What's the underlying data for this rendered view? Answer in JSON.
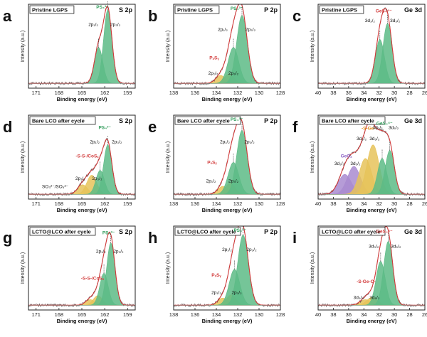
{
  "figure": {
    "description_label": "XPS spectra grid"
  },
  "chart_data": [
    {
      "id": "a",
      "type": "xps",
      "title": "Pristine LGPS",
      "core_level": "S 2p",
      "xlabel": "Binding energy (eV)",
      "ylabel": "Intensity (a.u.)",
      "xlim": [
        172,
        158
      ],
      "xticks": [
        171,
        168,
        165,
        162,
        159
      ],
      "peaks": [
        {
          "center": 162.8,
          "height": 0.45,
          "width": 0.55,
          "color": "green"
        },
        {
          "center": 161.6,
          "height": 0.92,
          "width": 0.55,
          "color": "green"
        }
      ],
      "labels": [
        {
          "text": "PS₄³⁻",
          "x": 162.3,
          "y": 1.0,
          "color": "green"
        },
        {
          "text": "2p₁/₂",
          "x": 163.5,
          "y": 0.78
        },
        {
          "text": "2p₃/₂",
          "x": 160.6,
          "y": 0.78
        }
      ]
    },
    {
      "id": "b",
      "type": "xps",
      "title": "Pristine LGPS",
      "core_level": "P 2p",
      "xlabel": "Binding energy (eV)",
      "ylabel": "Intensity (a.u.)",
      "xlim": [
        138,
        128
      ],
      "xticks": [
        138,
        136,
        134,
        132,
        130,
        128
      ],
      "peaks": [
        {
          "center": 133.6,
          "height": 0.1,
          "width": 0.45,
          "color": "gold"
        },
        {
          "center": 132.8,
          "height": 0.12,
          "width": 0.45,
          "color": "gold"
        },
        {
          "center": 132.4,
          "height": 0.45,
          "width": 0.5,
          "color": "green"
        },
        {
          "center": 131.6,
          "height": 0.85,
          "width": 0.5,
          "color": "green"
        }
      ],
      "labels": [
        {
          "text": "PS₄³⁻",
          "x": 132.1,
          "y": 0.98,
          "color": "green"
        },
        {
          "text": "2p₁/₂",
          "x": 133.4,
          "y": 0.72
        },
        {
          "text": "2p₃/₂",
          "x": 130.8,
          "y": 0.72
        },
        {
          "text": "PₓSᵧ",
          "x": 134.2,
          "y": 0.36,
          "color": "red"
        },
        {
          "text": "2p₁/₂",
          "x": 134.3,
          "y": 0.17
        },
        {
          "text": "2p₃/₂",
          "x": 132.4,
          "y": 0.17
        }
      ]
    },
    {
      "id": "c",
      "type": "xps",
      "title": "Pristine LGPS",
      "core_level": "Ge 3d",
      "xlabel": "Binding energy (eV)",
      "ylabel": "Intensity (a.u.)",
      "xlim": [
        40,
        26
      ],
      "xticks": [
        40,
        38,
        36,
        34,
        32,
        30,
        28,
        26
      ],
      "peaks": [
        {
          "center": 31.9,
          "height": 0.55,
          "width": 0.6,
          "color": "green"
        },
        {
          "center": 30.9,
          "height": 0.75,
          "width": 0.6,
          "color": "green"
        }
      ],
      "labels": [
        {
          "text": "GeS₄⁴⁻",
          "x": 31.4,
          "y": 0.95,
          "color": "red"
        },
        {
          "text": "3d₃/₂",
          "x": 33.2,
          "y": 0.83
        },
        {
          "text": "3d₅/₂",
          "x": 29.9,
          "y": 0.83
        }
      ]
    },
    {
      "id": "d",
      "type": "xps",
      "title": "Bare LCO after cycle",
      "core_level": "S 2p",
      "xlabel": "Binding energy (eV)",
      "ylabel": "Intensity (a.u.)",
      "xlim": [
        172,
        158
      ],
      "xticks": [
        171,
        168,
        165,
        162,
        159
      ],
      "peaks": [
        {
          "center": 164.9,
          "height": 0.12,
          "width": 0.65,
          "color": "gold"
        },
        {
          "center": 163.7,
          "height": 0.24,
          "width": 0.65,
          "color": "gold"
        },
        {
          "center": 162.6,
          "height": 0.3,
          "width": 0.55,
          "color": "green"
        },
        {
          "center": 161.6,
          "height": 0.62,
          "width": 0.55,
          "color": "green"
        }
      ],
      "labels": [
        {
          "text": "PS₄³⁻",
          "x": 162.0,
          "y": 0.88,
          "color": "green"
        },
        {
          "text": "2p₁/₂",
          "x": 163.3,
          "y": 0.7
        },
        {
          "text": "2p₃/₂",
          "x": 160.4,
          "y": 0.7
        },
        {
          "text": "-S-S-/CoSₓ",
          "x": 164.3,
          "y": 0.52,
          "color": "red"
        },
        {
          "text": "2p₁/₂",
          "x": 165.2,
          "y": 0.24
        },
        {
          "text": "2p₃/₂",
          "x": 163.0,
          "y": 0.24
        },
        {
          "text": "SO₃²⁻/SO₄²⁻",
          "x": 168.5,
          "y": 0.14
        }
      ]
    },
    {
      "id": "e",
      "type": "xps",
      "title": "Bare LCO after cycle",
      "core_level": "P 2p",
      "xlabel": "Binding energy (eV)",
      "ylabel": "Intensity (a.u.)",
      "xlim": [
        138,
        128
      ],
      "xticks": [
        138,
        136,
        134,
        132,
        130,
        128
      ],
      "peaks": [
        {
          "center": 133.4,
          "height": 0.1,
          "width": 0.45,
          "color": "gold"
        },
        {
          "center": 132.7,
          "height": 0.14,
          "width": 0.45,
          "color": "gold"
        },
        {
          "center": 132.4,
          "height": 0.4,
          "width": 0.5,
          "color": "green"
        },
        {
          "center": 131.6,
          "height": 0.8,
          "width": 0.5,
          "color": "green"
        }
      ],
      "labels": [
        {
          "text": "PS₄³⁻",
          "x": 132.1,
          "y": 0.98,
          "color": "green"
        },
        {
          "text": "2p₁/₂",
          "x": 133.2,
          "y": 0.7
        },
        {
          "text": "2p₃/₂",
          "x": 130.9,
          "y": 0.7
        },
        {
          "text": "PₓSᵧ",
          "x": 134.4,
          "y": 0.44,
          "color": "red"
        },
        {
          "text": "2p₁/₂",
          "x": 134.5,
          "y": 0.21
        },
        {
          "text": "2p₃/₂",
          "x": 132.4,
          "y": 0.21
        }
      ]
    },
    {
      "id": "f",
      "type": "xps",
      "title": "Bare LCO after cycle",
      "core_level": "Ge 3d",
      "xlabel": "Binding energy (eV)",
      "ylabel": "Intensity (a.u.)",
      "xlim": [
        40,
        26
      ],
      "xticks": [
        40,
        38,
        36,
        34,
        32,
        30,
        28,
        26
      ],
      "peaks": [
        {
          "center": 36.5,
          "height": 0.25,
          "width": 0.85,
          "color": "purple"
        },
        {
          "center": 35.3,
          "height": 0.35,
          "width": 0.85,
          "color": "purple"
        },
        {
          "center": 33.8,
          "height": 0.45,
          "width": 0.8,
          "color": "gold"
        },
        {
          "center": 32.8,
          "height": 0.62,
          "width": 0.8,
          "color": "gold"
        },
        {
          "center": 31.6,
          "height": 0.45,
          "width": 0.6,
          "color": "green"
        },
        {
          "center": 30.6,
          "height": 0.55,
          "width": 0.6,
          "color": "green"
        }
      ],
      "labels": [
        {
          "text": "GeS₄⁴⁻",
          "x": 31.3,
          "y": 0.93,
          "color": "green"
        },
        {
          "text": "-S-Ge-",
          "x": 33.4,
          "y": 0.87,
          "color": "orange"
        },
        {
          "text": "GeOₓ",
          "x": 36.3,
          "y": 0.52,
          "color": "purple"
        },
        {
          "text": "3d₃/₂",
          "x": 37.2,
          "y": 0.43
        },
        {
          "text": "3d₅/₂",
          "x": 35.1,
          "y": 0.43
        },
        {
          "text": "3d₃/₂",
          "x": 34.3,
          "y": 0.74
        },
        {
          "text": "3d₅/₂",
          "x": 32.6,
          "y": 0.74
        },
        {
          "text": "3d₃/₂",
          "x": 32.2,
          "y": 0.88
        },
        {
          "text": "3d₅/₂",
          "x": 30.1,
          "y": 0.88
        }
      ]
    },
    {
      "id": "g",
      "type": "xps",
      "title": "LCTO@LCO after cycle",
      "core_level": "S 2p",
      "xlabel": "Binding energy (eV)",
      "ylabel": "Intensity (a.u.)",
      "xlim": [
        172,
        158
      ],
      "xticks": [
        171,
        168,
        165,
        162,
        159
      ],
      "peaks": [
        {
          "center": 163.9,
          "height": 0.07,
          "width": 0.6,
          "color": "gold"
        },
        {
          "center": 162.9,
          "height": 0.12,
          "width": 0.6,
          "color": "gold"
        },
        {
          "center": 162.1,
          "height": 0.4,
          "width": 0.55,
          "color": "green"
        },
        {
          "center": 161.2,
          "height": 0.78,
          "width": 0.55,
          "color": "green"
        }
      ],
      "labels": [
        {
          "text": "PS₄³⁻",
          "x": 161.5,
          "y": 0.95,
          "color": "green"
        },
        {
          "text": "2p₁/₂",
          "x": 162.5,
          "y": 0.72
        },
        {
          "text": "2p₃/₂",
          "x": 160.2,
          "y": 0.72
        },
        {
          "text": "-S-S-/CoSₓ",
          "x": 163.6,
          "y": 0.38,
          "color": "red"
        }
      ]
    },
    {
      "id": "h",
      "type": "xps",
      "title": "LCTO@LCO after cycle",
      "core_level": "P 2p",
      "xlabel": "Binding energy (eV)",
      "ylabel": "Intensity (a.u.)",
      "xlim": [
        138,
        128
      ],
      "xticks": [
        138,
        136,
        134,
        132,
        130,
        128
      ],
      "peaks": [
        {
          "center": 133.4,
          "height": 0.09,
          "width": 0.45,
          "color": "gold"
        },
        {
          "center": 132.6,
          "height": 0.13,
          "width": 0.45,
          "color": "gold"
        },
        {
          "center": 132.3,
          "height": 0.45,
          "width": 0.5,
          "color": "green"
        },
        {
          "center": 131.5,
          "height": 0.88,
          "width": 0.5,
          "color": "green"
        }
      ],
      "labels": [
        {
          "text": "PS₄³⁻",
          "x": 131.8,
          "y": 0.98,
          "color": "green"
        },
        {
          "text": "2p₁/₂",
          "x": 133.0,
          "y": 0.74
        },
        {
          "text": "2p₃/₂",
          "x": 130.7,
          "y": 0.74
        },
        {
          "text": "PₓSᵧ",
          "x": 134.0,
          "y": 0.42,
          "color": "red"
        },
        {
          "text": "2p₁/₂",
          "x": 134.0,
          "y": 0.2
        },
        {
          "text": "2p₃/₂",
          "x": 132.1,
          "y": 0.2
        }
      ]
    },
    {
      "id": "i",
      "type": "xps",
      "title": "LCTO@LCO after cycle",
      "core_level": "Ge 3d",
      "xlabel": "Binding energy (eV)",
      "ylabel": "Intensity (a.u.)",
      "xlim": [
        40,
        26
      ],
      "xticks": [
        40,
        38,
        36,
        34,
        32,
        30,
        28,
        26
      ],
      "peaks": [
        {
          "center": 33.8,
          "height": 0.07,
          "width": 0.7,
          "color": "gold"
        },
        {
          "center": 32.9,
          "height": 0.1,
          "width": 0.7,
          "color": "gold"
        },
        {
          "center": 31.8,
          "height": 0.55,
          "width": 0.6,
          "color": "green"
        },
        {
          "center": 30.8,
          "height": 0.8,
          "width": 0.6,
          "color": "green"
        }
      ],
      "labels": [
        {
          "text": "GeS₄⁴⁻",
          "x": 31.3,
          "y": 0.97,
          "color": "red"
        },
        {
          "text": "3d₃/₂",
          "x": 32.7,
          "y": 0.78
        },
        {
          "text": "3d₅/₂",
          "x": 29.8,
          "y": 0.78
        },
        {
          "text": "-S-Ge-O-",
          "x": 33.7,
          "y": 0.34,
          "color": "red"
        },
        {
          "text": "3d₃/₂",
          "x": 34.7,
          "y": 0.14
        },
        {
          "text": "3d₅/₂",
          "x": 32.6,
          "y": 0.14
        }
      ]
    }
  ],
  "colors": {
    "green": "#5dbb86",
    "gold": "#e6c35a",
    "purple": "#a98bd0",
    "envelope": "#d23b3b",
    "raw": "#555555",
    "red_label": "#d23b3b",
    "green_label": "#2e9a58",
    "orange_label": "#e08a1c",
    "purple_label": "#8a5fc4"
  }
}
